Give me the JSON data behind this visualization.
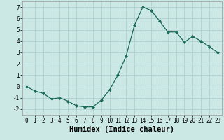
{
  "x": [
    0,
    1,
    2,
    3,
    4,
    5,
    6,
    7,
    8,
    9,
    10,
    11,
    12,
    13,
    14,
    15,
    16,
    17,
    18,
    19,
    20,
    21,
    22,
    23
  ],
  "y": [
    0.0,
    -0.4,
    -0.6,
    -1.1,
    -1.0,
    -1.3,
    -1.7,
    -1.8,
    -1.8,
    -1.2,
    -0.3,
    1.0,
    2.7,
    5.4,
    7.0,
    6.7,
    5.8,
    4.8,
    4.8,
    3.9,
    4.4,
    4.0,
    3.5,
    3.0
  ],
  "line_color": "#1a6b5a",
  "marker_color": "#1a6b5a",
  "bg_color": "#cce8e4",
  "grid_color": "#aacfcb",
  "xlabel": "Humidex (Indice chaleur)",
  "ylim": [
    -2.5,
    7.5
  ],
  "xlim": [
    -0.5,
    23.5
  ],
  "yticks": [
    -2,
    -1,
    0,
    1,
    2,
    3,
    4,
    5,
    6,
    7
  ],
  "xticks": [
    0,
    1,
    2,
    3,
    4,
    5,
    6,
    7,
    8,
    9,
    10,
    11,
    12,
    13,
    14,
    15,
    16,
    17,
    18,
    19,
    20,
    21,
    22,
    23
  ],
  "tick_fontsize": 5.5,
  "xlabel_fontsize": 7.5
}
